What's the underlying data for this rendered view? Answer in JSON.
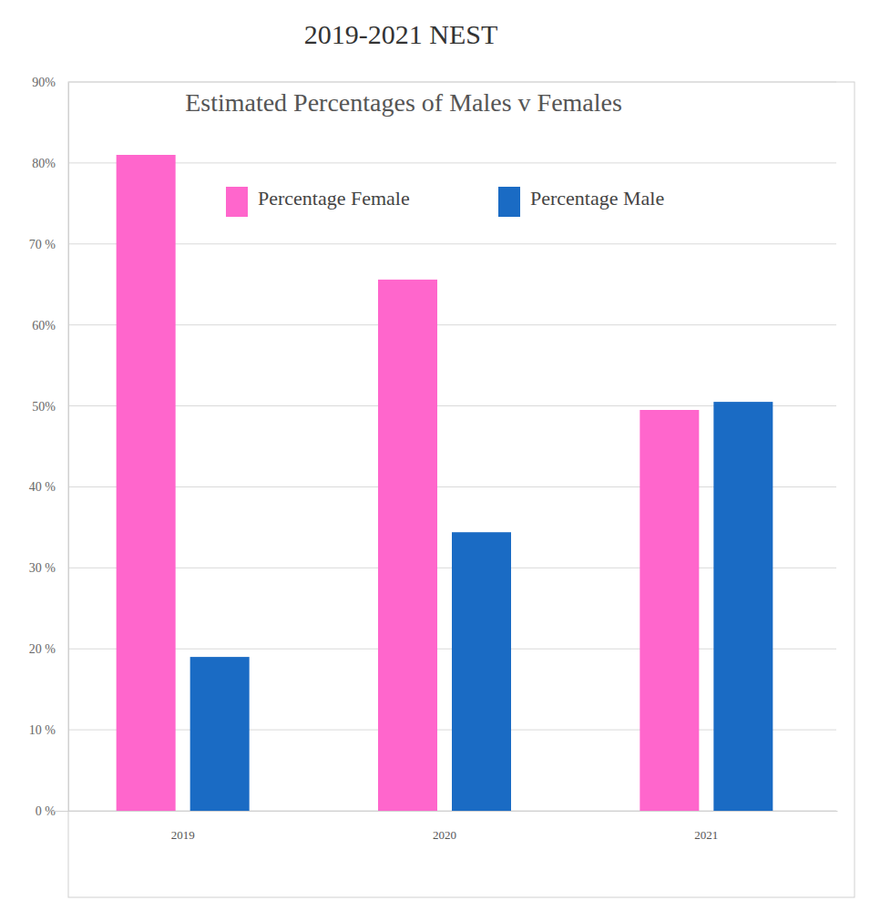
{
  "chart_data": {
    "type": "bar",
    "title": "2019-2021 NEST",
    "subtitle": "Estimated Percentages of Males v Females",
    "categories": [
      "2019",
      "2020",
      "2021"
    ],
    "series": [
      {
        "name": "Percentage Female",
        "color": "#ff66cc",
        "values": [
          81,
          65.6,
          49.5
        ]
      },
      {
        "name": "Percentage Male",
        "color": "#1a6bc4",
        "values": [
          19,
          34.4,
          50.5
        ]
      }
    ],
    "ylim": [
      0,
      90
    ],
    "yticks": [
      {
        "value": 0,
        "label": "0 %"
      },
      {
        "value": 10,
        "label": "10 %"
      },
      {
        "value": 20,
        "label": "20 %"
      },
      {
        "value": 30,
        "label": "30 %"
      },
      {
        "value": 40,
        "label": "40 %"
      },
      {
        "value": 50,
        "label": "50%"
      },
      {
        "value": 60,
        "label": "60%"
      },
      {
        "value": 70,
        "label": "70 %"
      },
      {
        "value": 80,
        "label": "80%"
      },
      {
        "value": 90,
        "label": "90%"
      }
    ],
    "grid": true,
    "legend": "top"
  }
}
